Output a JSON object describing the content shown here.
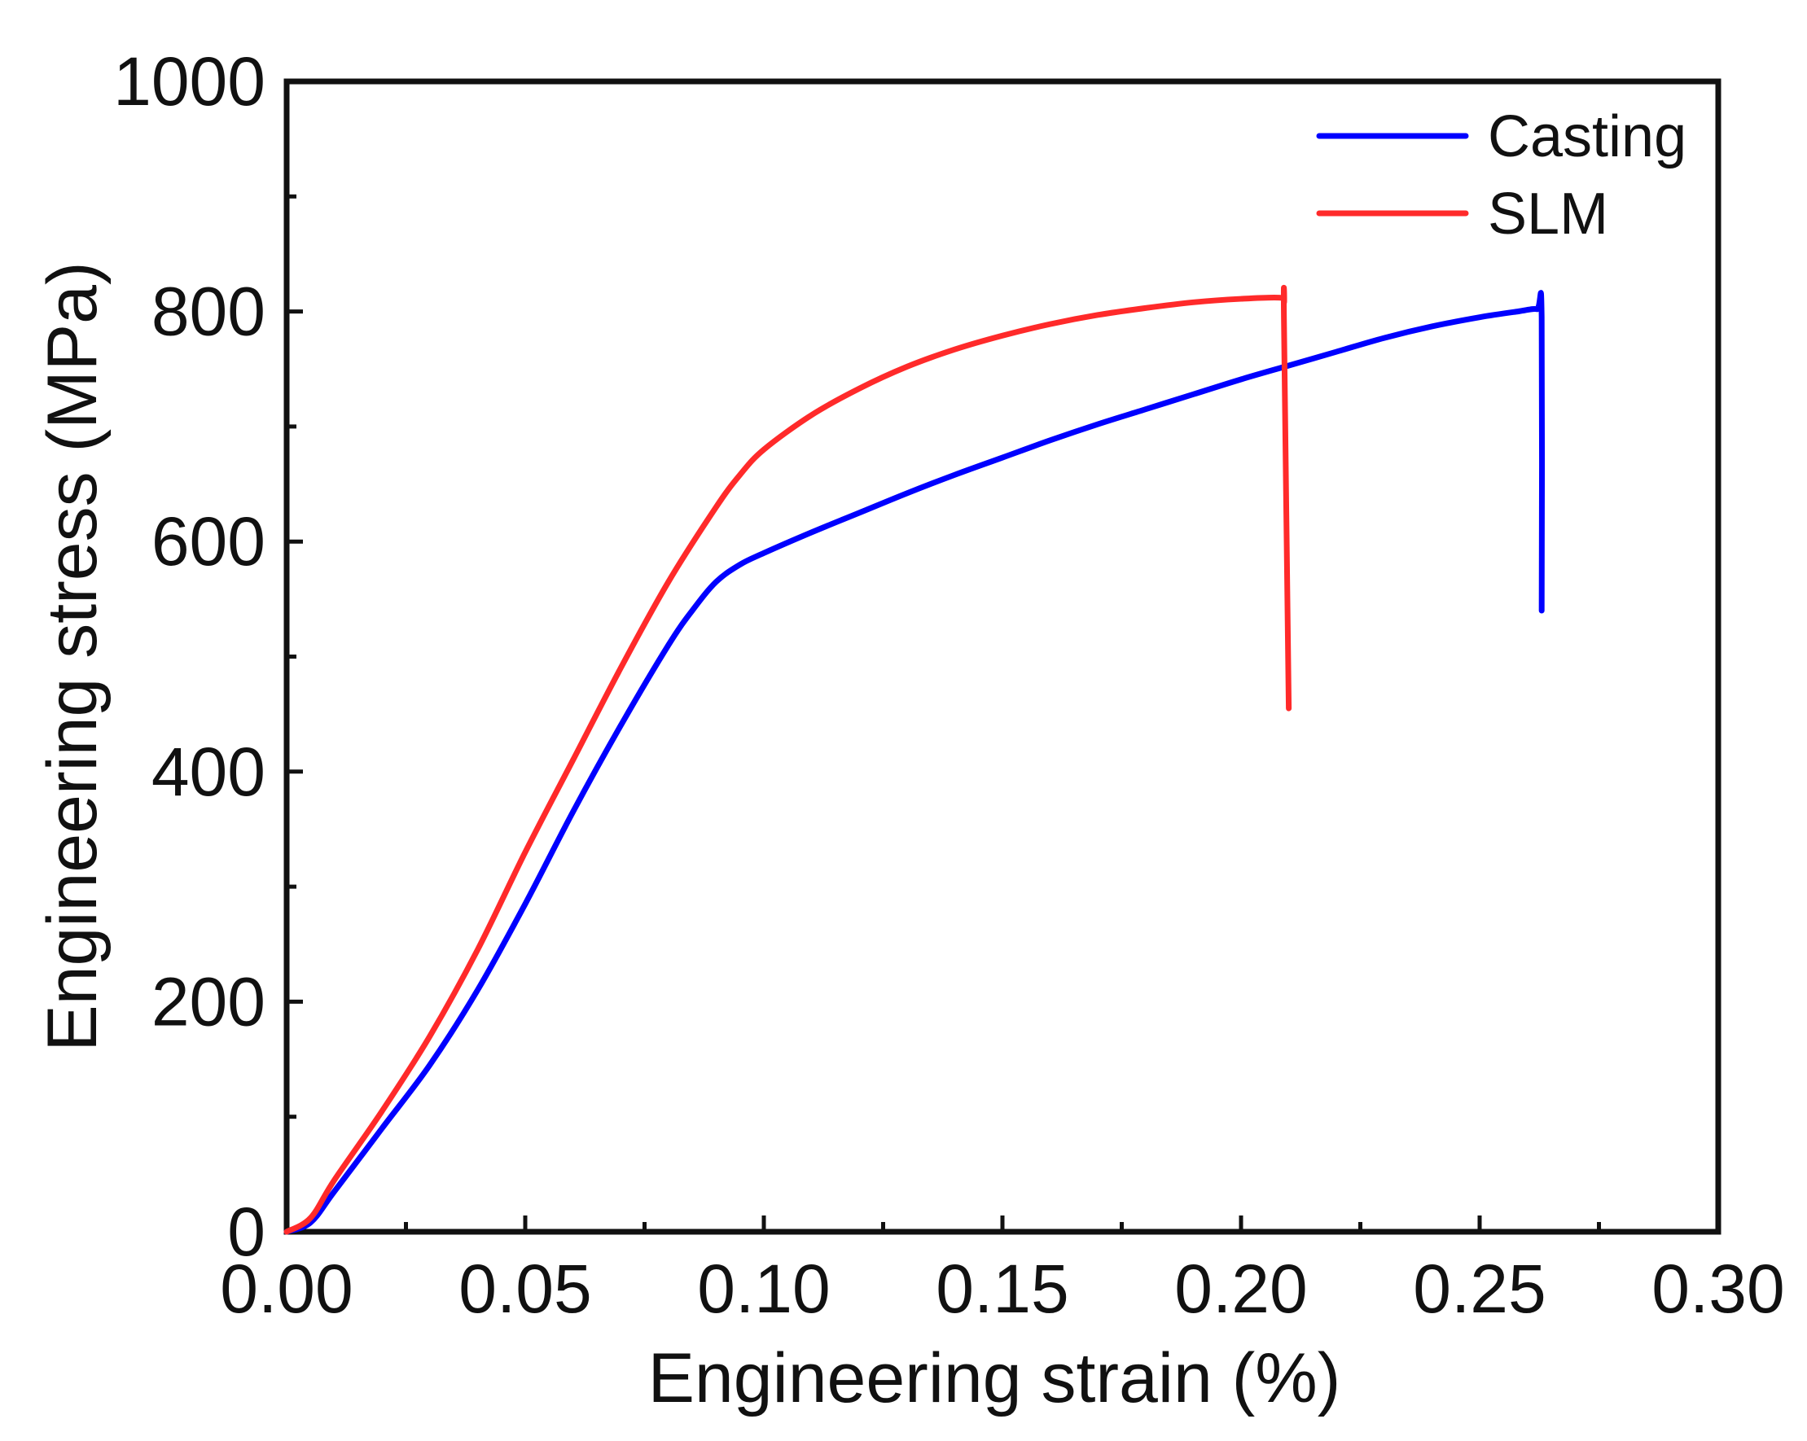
{
  "chart_data": {
    "type": "line",
    "title": "",
    "xlabel": "Engineering strain (%)",
    "ylabel": "Engineering stress (MPa)",
    "xlim": [
      0,
      0.3
    ],
    "ylim": [
      0,
      1000
    ],
    "x_ticks": [
      0.0,
      0.05,
      0.1,
      0.15,
      0.2,
      0.25,
      0.3
    ],
    "x_tick_labels": [
      "0.00",
      "0.05",
      "0.10",
      "0.15",
      "0.20",
      "0.25",
      "0.30"
    ],
    "y_ticks": [
      0,
      200,
      400,
      600,
      800,
      1000
    ],
    "y_tick_labels": [
      "0",
      "200",
      "400",
      "600",
      "800",
      "1000"
    ],
    "grid": false,
    "legend_position": "top-right",
    "series": [
      {
        "name": "Casting",
        "color": "#0000ff",
        "points": [
          [
            0.0,
            0
          ],
          [
            0.005,
            8
          ],
          [
            0.01,
            35
          ],
          [
            0.02,
            90
          ],
          [
            0.03,
            145
          ],
          [
            0.04,
            210
          ],
          [
            0.05,
            285
          ],
          [
            0.06,
            365
          ],
          [
            0.07,
            440
          ],
          [
            0.08,
            510
          ],
          [
            0.085,
            540
          ],
          [
            0.09,
            565
          ],
          [
            0.095,
            580
          ],
          [
            0.1,
            590
          ],
          [
            0.11,
            608
          ],
          [
            0.12,
            625
          ],
          [
            0.13,
            642
          ],
          [
            0.14,
            658
          ],
          [
            0.15,
            673
          ],
          [
            0.16,
            688
          ],
          [
            0.17,
            702
          ],
          [
            0.18,
            715
          ],
          [
            0.19,
            728
          ],
          [
            0.2,
            741
          ],
          [
            0.21,
            753
          ],
          [
            0.22,
            765
          ],
          [
            0.23,
            777
          ],
          [
            0.24,
            787
          ],
          [
            0.25,
            795
          ],
          [
            0.258,
            800
          ],
          [
            0.262,
            802
          ],
          [
            0.263,
            795
          ],
          [
            0.263,
            540
          ]
        ]
      },
      {
        "name": "SLM",
        "color": "#ff2a2a",
        "points": [
          [
            0.0,
            0
          ],
          [
            0.005,
            12
          ],
          [
            0.01,
            45
          ],
          [
            0.02,
            105
          ],
          [
            0.03,
            170
          ],
          [
            0.04,
            245
          ],
          [
            0.05,
            330
          ],
          [
            0.06,
            410
          ],
          [
            0.07,
            490
          ],
          [
            0.08,
            565
          ],
          [
            0.09,
            630
          ],
          [
            0.095,
            658
          ],
          [
            0.1,
            680
          ],
          [
            0.11,
            710
          ],
          [
            0.12,
            733
          ],
          [
            0.13,
            752
          ],
          [
            0.14,
            767
          ],
          [
            0.15,
            779
          ],
          [
            0.16,
            789
          ],
          [
            0.17,
            797
          ],
          [
            0.18,
            803
          ],
          [
            0.19,
            808
          ],
          [
            0.2,
            811
          ],
          [
            0.208,
            812
          ],
          [
            0.209,
            808
          ],
          [
            0.209,
            790
          ],
          [
            0.21,
            455
          ]
        ]
      }
    ]
  }
}
